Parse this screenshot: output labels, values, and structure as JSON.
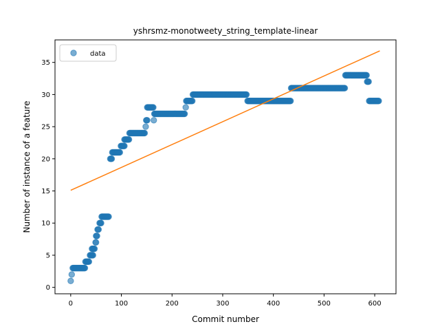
{
  "chart_data": {
    "type": "scatter",
    "title": "yshrsmz-monotweety_string_template-linear",
    "xlabel": "Commit number",
    "ylabel": "Number of instance of a feature",
    "xlim": [
      -31,
      642
    ],
    "ylim": [
      -1,
      38.5
    ],
    "xticks": [
      0,
      100,
      200,
      300,
      400,
      500,
      600
    ],
    "yticks": [
      0,
      5,
      10,
      15,
      20,
      25,
      30,
      35
    ],
    "grid": false,
    "legend": {
      "placement": "top-left",
      "entries": [
        "data"
      ]
    },
    "colors": {
      "data": "#1f77b4",
      "fit": "#ff7f0e"
    },
    "series": [
      {
        "name": "data",
        "kind": "scatter-runs",
        "runs": [
          {
            "x0": 0,
            "x1": 0,
            "y": 1
          },
          {
            "x0": 2,
            "x1": 2,
            "y": 2
          },
          {
            "x0": 4,
            "x1": 28,
            "y": 3
          },
          {
            "x0": 29,
            "x1": 36,
            "y": 4
          },
          {
            "x0": 38,
            "x1": 44,
            "y": 5
          },
          {
            "x0": 42,
            "x1": 47,
            "y": 6
          },
          {
            "x0": 49,
            "x1": 50,
            "y": 7
          },
          {
            "x0": 50,
            "x1": 52,
            "y": 8
          },
          {
            "x0": 53,
            "x1": 55,
            "y": 9
          },
          {
            "x0": 57,
            "x1": 60,
            "y": 10
          },
          {
            "x0": 61,
            "x1": 75,
            "y": 11
          },
          {
            "x0": 78,
            "x1": 81,
            "y": 20
          },
          {
            "x0": 82,
            "x1": 97,
            "y": 21
          },
          {
            "x0": 99,
            "x1": 106,
            "y": 22
          },
          {
            "x0": 106,
            "x1": 115,
            "y": 23
          },
          {
            "x0": 116,
            "x1": 146,
            "y": 24
          },
          {
            "x0": 148,
            "x1": 148,
            "y": 25
          },
          {
            "x0": 149,
            "x1": 151,
            "y": 26
          },
          {
            "x0": 151,
            "x1": 163,
            "y": 28
          },
          {
            "x0": 164,
            "x1": 164,
            "y": 26
          },
          {
            "x0": 165,
            "x1": 225,
            "y": 27
          },
          {
            "x0": 227,
            "x1": 227,
            "y": 28
          },
          {
            "x0": 228,
            "x1": 240,
            "y": 29
          },
          {
            "x0": 241,
            "x1": 347,
            "y": 30
          },
          {
            "x0": 349,
            "x1": 434,
            "y": 29
          },
          {
            "x0": 435,
            "x1": 541,
            "y": 31
          },
          {
            "x0": 542,
            "x1": 584,
            "y": 33
          },
          {
            "x0": 585,
            "x1": 588,
            "y": 32
          },
          {
            "x0": 589,
            "x1": 608,
            "y": 29
          }
        ]
      },
      {
        "name": "",
        "kind": "line",
        "x": [
          0,
          610
        ],
        "y": [
          15.1,
          36.8
        ]
      }
    ]
  }
}
